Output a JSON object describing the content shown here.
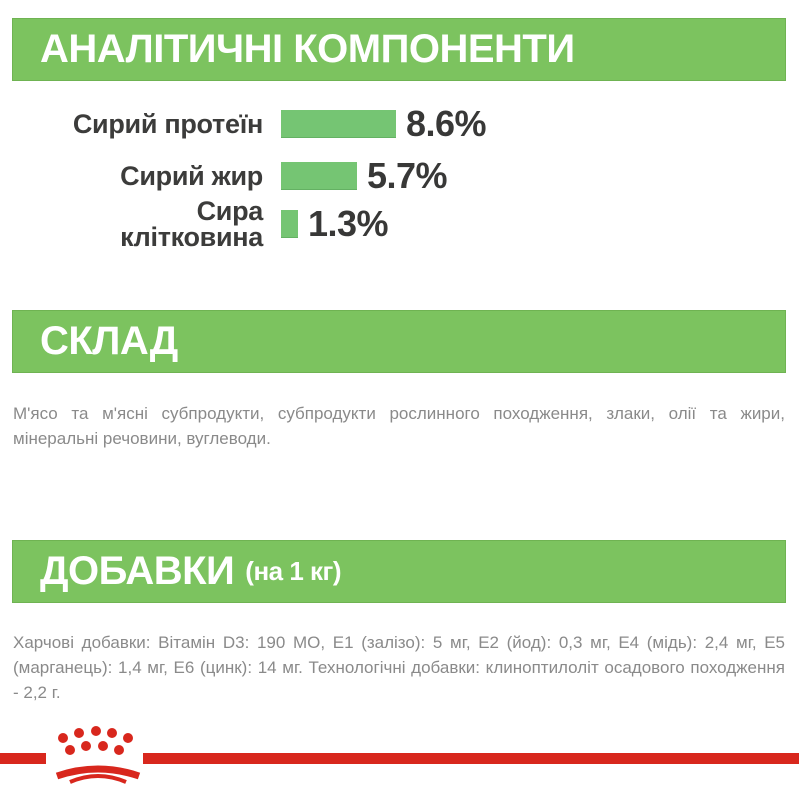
{
  "colors": {
    "green_header": "#7CC35F",
    "green_bar": "#75C573",
    "brand_red": "#D8271D",
    "text_dark": "#3C3C3B",
    "text_gray": "#8A8A8A",
    "header_text": "#FFFFFF"
  },
  "sections": {
    "analytical": {
      "title": "АНАЛІТИЧНІ КОМПОНЕНТИ"
    },
    "composition": {
      "title": "СКЛАД",
      "body": "М'ясо та м'ясні субпродукти, субпродукти рослинного походження, злаки, олії та жири, мінеральні речовини, вуглеводи."
    },
    "additives": {
      "title": "ДОБАВКИ",
      "suffix": "(на 1 кг)",
      "body": "Харчові добавки: Вітамін D3: 190 МО, Е1 (залізо): 5 мг, Е2 (йод): 0,3 мг, Е4 (мідь): 2,4 мг, Е5 (марганець): 1,4 мг, Е6 (цинк): 14 мг. Технологічні добавки: клиноптилоліт осадового походження - 2,2 г."
    }
  },
  "chart_data": {
    "type": "bar",
    "orientation": "horizontal",
    "title": "АНАЛІТИЧНІ КОМПОНЕНТИ",
    "categories": [
      "Сирий протеїн",
      "Сирий жир",
      "Сира клітковина"
    ],
    "values": [
      8.6,
      5.7,
      1.3
    ],
    "value_labels": [
      "8.6%",
      "5.7%",
      "1.3%"
    ],
    "unit": "%",
    "xlim": [
      0,
      8.6
    ],
    "bar_color": "#75C573",
    "grid": false,
    "legend": false
  },
  "footer": {
    "logo": "royal-canin-crown"
  }
}
